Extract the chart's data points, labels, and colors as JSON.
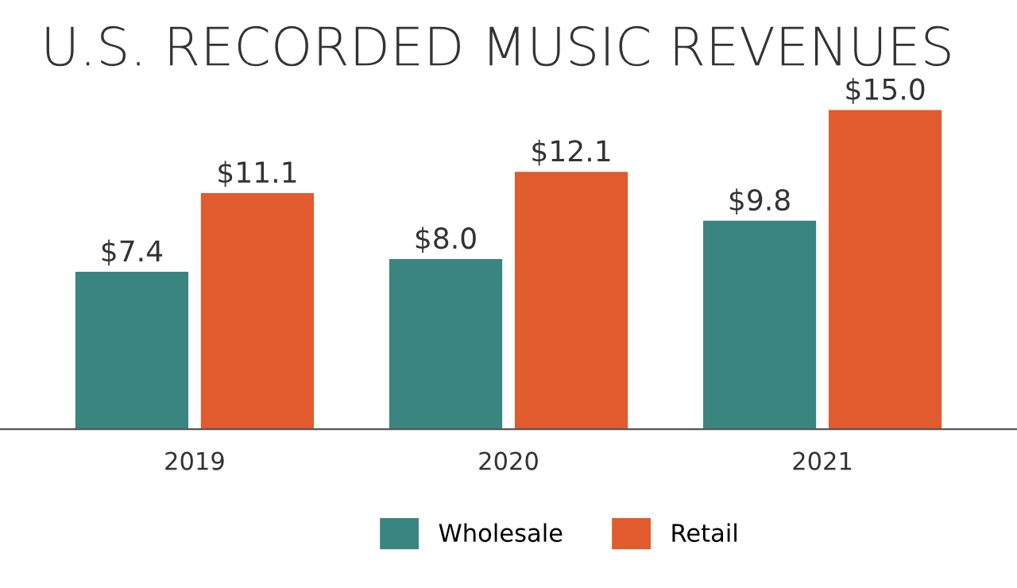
{
  "chart_data": {
    "type": "bar",
    "title": "U.S. RECORDED MUSIC REVENUES",
    "categories": [
      "2019",
      "2020",
      "2021"
    ],
    "series": [
      {
        "name": "Wholesale",
        "color": "#3b8581",
        "values": [
          7.4,
          8.0,
          9.8
        ],
        "value_labels": [
          "$7.4",
          "$8.0",
          "$9.8"
        ]
      },
      {
        "name": "Retail",
        "color": "#e05c2e",
        "values": [
          11.1,
          12.1,
          15.0
        ],
        "value_labels": [
          "$11.1",
          "$12.1",
          "$15.0"
        ]
      }
    ],
    "legend": "bottom",
    "grid": false
  }
}
